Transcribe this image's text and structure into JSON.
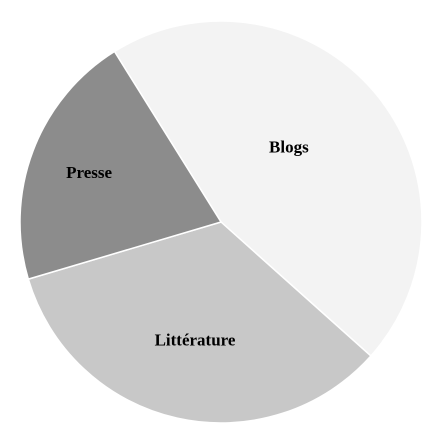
{
  "chart_data": {
    "type": "pie",
    "title": "",
    "slices": [
      {
        "label": "Blogs",
        "value": 45.5,
        "color": "#f3f3f3"
      },
      {
        "label": "Littérature",
        "value": 33.8,
        "color": "#c8c8c8"
      },
      {
        "label": "Presse",
        "value": 20.7,
        "color": "#8c8c8c"
      }
    ],
    "start_angle_deg": -32,
    "legend": "none",
    "data_labels": "inside"
  }
}
